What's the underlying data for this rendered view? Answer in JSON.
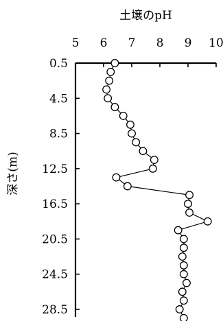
{
  "chart_data": {
    "type": "line",
    "title": "土壌のpH",
    "xlabel": "土壌のpH",
    "ylabel": "深さ(m)",
    "x_axis_position": "top",
    "y_axis_inverted": true,
    "xlim": [
      5,
      10
    ],
    "ylim": [
      0.5,
      29.5
    ],
    "x_ticks": [
      5,
      6,
      7,
      8,
      9,
      10
    ],
    "x_tick_labels": [
      "5",
      "6",
      "7",
      "8",
      "9",
      "10"
    ],
    "y_ticks": [
      0.5,
      4.5,
      8.5,
      12.5,
      16.5,
      20.5,
      24.5,
      28.5
    ],
    "y_tick_labels": [
      "0.5",
      "4.5",
      "8.5",
      "12.5",
      "16.5",
      "20.5",
      "24.5",
      "28.5"
    ],
    "grid": false,
    "legend": "none",
    "series": [
      {
        "marker": "open-circle",
        "line_color": "#000000",
        "points": [
          {
            "ph": 6.4,
            "depth": 0.5
          },
          {
            "ph": 6.25,
            "depth": 1.5
          },
          {
            "ph": 6.2,
            "depth": 2.5
          },
          {
            "ph": 6.1,
            "depth": 3.5
          },
          {
            "ph": 6.15,
            "depth": 4.5
          },
          {
            "ph": 6.4,
            "depth": 5.5
          },
          {
            "ph": 6.7,
            "depth": 6.5
          },
          {
            "ph": 6.95,
            "depth": 7.5
          },
          {
            "ph": 7.0,
            "depth": 8.5
          },
          {
            "ph": 7.15,
            "depth": 9.5
          },
          {
            "ph": 7.4,
            "depth": 10.5
          },
          {
            "ph": 7.8,
            "depth": 11.5
          },
          {
            "ph": 7.75,
            "depth": 12.5
          },
          {
            "ph": 6.45,
            "depth": 13.5
          },
          {
            "ph": 6.85,
            "depth": 14.5
          },
          {
            "ph": 9.05,
            "depth": 15.5
          },
          {
            "ph": 9.0,
            "depth": 16.5
          },
          {
            "ph": 9.05,
            "depth": 17.5
          },
          {
            "ph": 9.7,
            "depth": 18.5
          },
          {
            "ph": 8.65,
            "depth": 19.5
          },
          {
            "ph": 8.85,
            "depth": 20.5
          },
          {
            "ph": 8.85,
            "depth": 21.5
          },
          {
            "ph": 8.8,
            "depth": 22.5
          },
          {
            "ph": 8.85,
            "depth": 23.5
          },
          {
            "ph": 8.85,
            "depth": 24.5
          },
          {
            "ph": 8.95,
            "depth": 25.5
          },
          {
            "ph": 8.8,
            "depth": 26.5
          },
          {
            "ph": 8.85,
            "depth": 27.5
          },
          {
            "ph": 8.7,
            "depth": 28.5
          },
          {
            "ph": 8.85,
            "depth": 29.5
          }
        ]
      }
    ]
  }
}
